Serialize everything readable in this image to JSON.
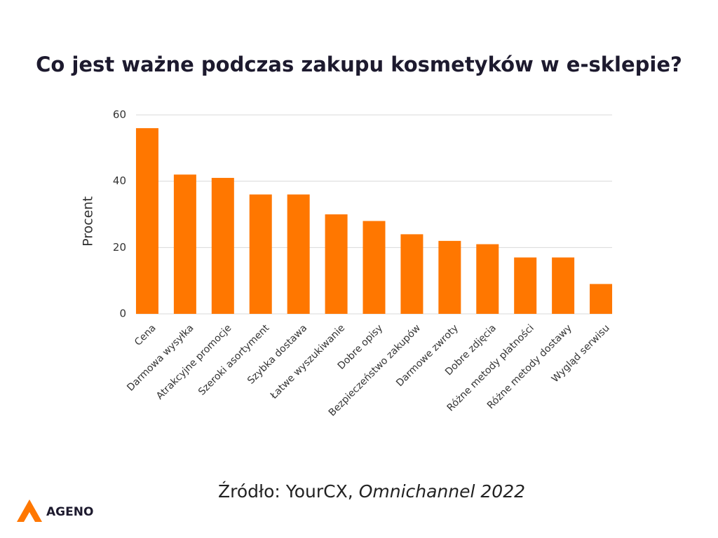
{
  "chart_data": {
    "type": "bar",
    "title": "Co jest ważne podczas zakupu kosmetyków w e-sklepie?",
    "y_label": "Procent",
    "categories": [
      "Cena",
      "Darmowa wysyłka",
      "Atrakcyjne promocje",
      "Szeroki asortyment",
      "Szybka dostawa",
      "Łatwe wyszukiwanie",
      "Dobre opisy",
      "Bezpieczeństwo zakupów",
      "Darmowe zwroty",
      "Dobre zdjęcia",
      "Różne metody płatności",
      "Różne metody dostawy",
      "Wygląd serwisu"
    ],
    "values": [
      56,
      42,
      41,
      36,
      36,
      30,
      28,
      24,
      22,
      21,
      17,
      17,
      9
    ],
    "color": "#ff7700",
    "ylim": [
      0,
      60
    ],
    "yticks": [
      0,
      20,
      40,
      60
    ],
    "grid": true
  },
  "source": {
    "prefix": "Źródło: YourCX,",
    "publication": "Omnichannel 2022"
  },
  "logo": {
    "text": "AGENO"
  }
}
